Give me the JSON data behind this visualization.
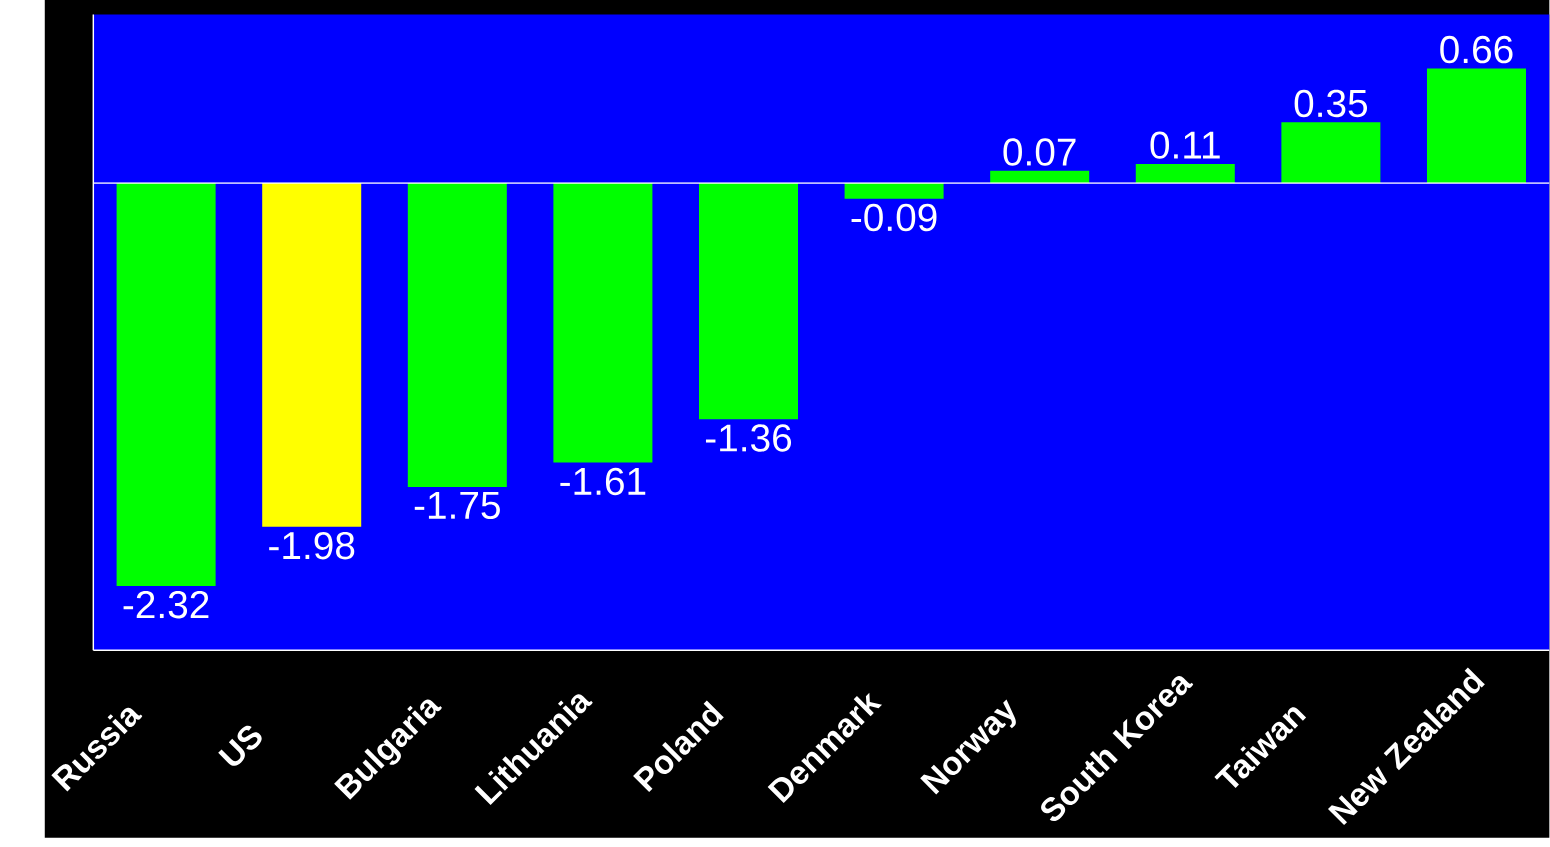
{
  "chart_data": {
    "type": "bar",
    "categories": [
      "Russia",
      "US",
      "Bulgaria",
      "Lithuania",
      "Poland",
      "Denmark",
      "Norway",
      "South Korea",
      "Taiwan",
      "New Zealand"
    ],
    "values": [
      -2.32,
      -1.98,
      -1.75,
      -1.61,
      -1.36,
      -0.09,
      0.07,
      0.11,
      0.35,
      0.66
    ],
    "colors": [
      "#00ff00",
      "#ffff00",
      "#00ff00",
      "#00ff00",
      "#00ff00",
      "#00ff00",
      "#00ff00",
      "#00ff00",
      "#00ff00",
      "#00ff00"
    ],
    "data_labels": true
  }
}
